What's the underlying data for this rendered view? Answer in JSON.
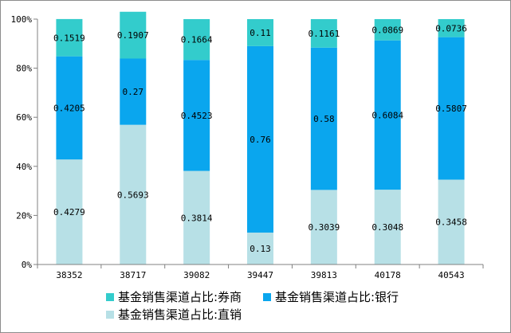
{
  "chart_data": {
    "type": "bar",
    "stacked": true,
    "categories": [
      "38352",
      "38717",
      "39082",
      "39447",
      "39813",
      "40178",
      "40543"
    ],
    "series": [
      {
        "name": "基金销售渠道占比:直销",
        "color": "#b7e0e6",
        "values": [
          0.4279,
          0.5693,
          0.3814,
          0.13,
          0.3039,
          0.3048,
          0.3458
        ],
        "labels": [
          "0.4279",
          "0.5693",
          "0.3814",
          "0.13",
          "0.3039",
          "0.3048",
          "0.3458"
        ]
      },
      {
        "name": "基金销售渠道占比:银行",
        "color": "#0aa6ee",
        "values": [
          0.4205,
          0.27,
          0.4523,
          0.76,
          0.58,
          0.6084,
          0.5807
        ],
        "labels": [
          "0.4205",
          "0.27",
          "0.4523",
          "0.76",
          "0.58",
          "0.6084",
          "0.5807"
        ]
      },
      {
        "name": "基金销售渠道占比:券商",
        "color": "#33cccc",
        "values": [
          0.1519,
          0.1907,
          0.1664,
          0.11,
          0.1161,
          0.0869,
          0.0736
        ],
        "labels": [
          "0.1519",
          "0.1907",
          "0.1664",
          "0.11",
          "0.1161",
          "0.0869",
          "0.0736"
        ]
      }
    ],
    "ylim": [
      0,
      1
    ],
    "yticks": [
      "0%",
      "20%",
      "40%",
      "60%",
      "80%",
      "100%"
    ],
    "grid": false,
    "legend_position": "bottom"
  },
  "legend": {
    "item1": "基金销售渠道占比:券商",
    "item2": "基金销售渠道占比:银行",
    "item3": "基金销售渠道占比:直销"
  },
  "colors": {
    "broker": "#33cccc",
    "bank": "#0aa6ee",
    "direct": "#b7e0e6"
  }
}
